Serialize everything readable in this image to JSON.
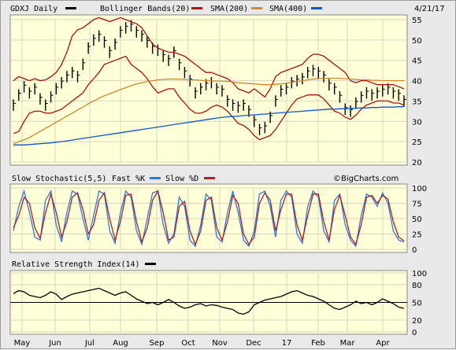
{
  "header": {
    "ticker_label": "GDXJ Daily",
    "bb_label": "Bollinger Bands(20)",
    "sma200_label": "SMA(200)",
    "sma400_label": "SMA(400)",
    "date": "4/21/17"
  },
  "stoch_header": {
    "title": "Slow Stochastic(5,5)",
    "fast_label": "Fast %K",
    "slow_label": "Slow %D",
    "brand": "©BigCharts.com"
  },
  "rsi_header": {
    "title": "Relative Strength Index(14)"
  },
  "colors": {
    "panel_bg": "#ffffd8",
    "frame_bg": "#e9e9e9",
    "price": "#000000",
    "bollinger": "#aa1111",
    "sma200": "#cc8833",
    "sma400": "#1155cc",
    "fast_k": "#3377dd",
    "slow_d": "#aa2222",
    "rsi": "#000000"
  },
  "chart_data": [
    {
      "type": "line",
      "panel": "price",
      "x_labels": [
        "May",
        "Jun",
        "Jul",
        "Aug",
        "Sep",
        "Oct",
        "Nov",
        "Dec",
        "17",
        "Feb",
        "Mar",
        "Apr"
      ],
      "y_ticks": [
        20,
        25,
        30,
        35,
        40,
        45,
        50,
        55
      ],
      "ylim": [
        20,
        55
      ],
      "series": [
        {
          "name": "GDXJ Daily",
          "style": "ohlc-bars",
          "values": [
            34,
            36.5,
            38.5,
            37,
            38,
            35.5,
            34,
            36,
            38,
            39.5,
            41,
            42,
            41,
            44,
            48,
            50,
            51,
            49.5,
            47,
            49,
            52,
            53,
            53.5,
            52,
            51,
            49.5,
            48,
            47.5,
            46,
            45,
            47,
            44,
            42,
            40,
            37,
            38,
            39,
            39.5,
            38,
            37.5,
            35,
            34,
            33.5,
            34,
            32.5,
            30,
            28,
            28.5,
            31,
            35,
            37.5,
            38,
            39.5,
            40,
            40.5,
            42,
            42.5,
            42,
            41,
            39,
            38,
            36,
            33,
            32.5,
            34.5,
            36,
            37,
            36.5,
            37,
            37.5,
            38,
            37,
            36.5,
            35
          ]
        },
        {
          "name": "Bollinger Bands(20) upper",
          "values": [
            40,
            41,
            40.5,
            40,
            40.5,
            40,
            40.2,
            41,
            42,
            44,
            47,
            51,
            52.5,
            53,
            54,
            55,
            55.5,
            55,
            54.5,
            55,
            55.5,
            55,
            54.5,
            54,
            53,
            51,
            49,
            48,
            47.5,
            47,
            47,
            46.5,
            46,
            45,
            44,
            43,
            42,
            42,
            41.5,
            41,
            40.5,
            39.5,
            38,
            37.5,
            37,
            38,
            37,
            36,
            38,
            41,
            42,
            42.5,
            43,
            43.5,
            44,
            45.5,
            46.5,
            46.5,
            46,
            45,
            44,
            43,
            42,
            40,
            39.5,
            40,
            40,
            39.5,
            39,
            39,
            39,
            39,
            38.5,
            38
          ]
        },
        {
          "name": "Bollinger Bands(20) lower",
          "values": [
            27,
            27.5,
            30,
            32,
            32.5,
            32.5,
            32,
            32,
            32.5,
            33,
            34,
            35,
            36,
            37,
            39,
            40.5,
            42,
            44,
            44.5,
            45,
            45.5,
            46,
            44,
            43,
            42,
            40.5,
            38.5,
            37,
            37.5,
            38,
            38,
            36,
            34.5,
            33,
            32,
            32,
            32.5,
            33.5,
            34,
            33.5,
            32.5,
            31,
            29.5,
            29,
            28,
            26.5,
            25.5,
            26,
            26.5,
            28,
            30,
            32,
            34,
            35.5,
            36,
            36.5,
            36.5,
            36.5,
            35.5,
            34,
            32.5,
            32,
            31,
            30.5,
            31.5,
            33,
            34,
            34.5,
            35,
            35,
            35,
            34.5,
            34.5,
            34
          ]
        },
        {
          "name": "SMA(200)",
          "values": [
            24.5,
            25,
            25.5,
            26,
            26.8,
            27.5,
            28.3,
            29,
            29.8,
            30.5,
            31.3,
            32,
            32.8,
            33.5,
            34.3,
            35,
            35.7,
            36.3,
            36.8,
            37.3,
            37.8,
            38.3,
            38.8,
            39.2,
            39.5,
            39.8,
            40,
            40.2,
            40.3,
            40.4,
            40.4,
            40.4,
            40.3,
            40.2,
            40.2,
            40.1,
            40,
            40,
            39.9,
            39.9,
            39.8,
            39.7,
            39.5,
            39.4,
            39.3,
            39.2,
            39.1,
            39,
            39,
            39.1,
            39.2,
            39.4,
            39.6,
            39.8,
            40,
            40.2,
            40.4,
            40.5,
            40.6,
            40.6,
            40.6,
            40.6,
            40.5,
            40.4,
            40.3,
            40.2,
            40.2,
            40.1,
            40.1,
            40,
            40,
            40,
            40,
            40
          ]
        },
        {
          "name": "SMA(400)",
          "values": [
            24.2,
            24.2,
            24.2,
            24.3,
            24.4,
            24.5,
            24.6,
            24.7,
            24.9,
            25.0,
            25.2,
            25.4,
            25.6,
            25.8,
            26.0,
            26.2,
            26.4,
            26.6,
            26.8,
            27.0,
            27.2,
            27.4,
            27.6,
            27.8,
            28.0,
            28.2,
            28.4,
            28.6,
            28.8,
            29.0,
            29.2,
            29.4,
            29.6,
            29.8,
            30.0,
            30.2,
            30.4,
            30.6,
            30.8,
            31.0,
            31.1,
            31.2,
            31.3,
            31.4,
            31.5,
            31.6,
            31.7,
            31.8,
            31.9,
            32.0,
            32.1,
            32.2,
            32.3,
            32.4,
            32.5,
            32.6,
            32.7,
            32.8,
            32.9,
            33.0,
            33.0,
            33.1,
            33.1,
            33.2,
            33.2,
            33.3,
            33.3,
            33.4,
            33.4,
            33.5,
            33.5,
            33.5,
            33.6,
            33.6
          ]
        }
      ]
    },
    {
      "type": "line",
      "panel": "stochastic",
      "y_ticks": [
        0,
        25,
        50,
        75,
        100
      ],
      "ylim": [
        0,
        100
      ],
      "series": [
        {
          "name": "Fast %K",
          "values": [
            30,
            70,
            95,
            60,
            20,
            15,
            80,
            95,
            40,
            12,
            60,
            95,
            90,
            50,
            15,
            55,
            95,
            90,
            30,
            10,
            60,
            95,
            85,
            30,
            8,
            50,
            92,
            95,
            40,
            10,
            25,
            85,
            70,
            15,
            5,
            40,
            90,
            80,
            20,
            12,
            60,
            95,
            60,
            15,
            5,
            30,
            90,
            95,
            70,
            20,
            80,
            95,
            85,
            25,
            10,
            70,
            95,
            85,
            30,
            12,
            80,
            90,
            40,
            15,
            5,
            55,
            90,
            85,
            70,
            92,
            75,
            30,
            15,
            12
          ]
        },
        {
          "name": "Slow %D",
          "values": [
            35,
            55,
            85,
            75,
            35,
            18,
            60,
            90,
            60,
            20,
            45,
            85,
            92,
            65,
            25,
            40,
            80,
            92,
            50,
            15,
            45,
            88,
            90,
            45,
            12,
            35,
            80,
            95,
            60,
            15,
            20,
            70,
            78,
            30,
            8,
            30,
            80,
            85,
            35,
            15,
            45,
            88,
            75,
            25,
            8,
            20,
            75,
            92,
            80,
            30,
            65,
            90,
            90,
            40,
            15,
            55,
            90,
            90,
            45,
            15,
            65,
            88,
            55,
            20,
            8,
            40,
            85,
            88,
            75,
            88,
            82,
            45,
            20,
            14
          ]
        }
      ]
    },
    {
      "type": "line",
      "panel": "rsi",
      "y_ticks": [
        0,
        20,
        50,
        80,
        100
      ],
      "ylim": [
        0,
        100
      ],
      "reference_line": 50,
      "series": [
        {
          "name": "Relative Strength Index(14)",
          "values": [
            65,
            70,
            68,
            62,
            60,
            58,
            62,
            68,
            64,
            55,
            60,
            64,
            66,
            68,
            70,
            72,
            74,
            70,
            66,
            62,
            66,
            68,
            62,
            56,
            52,
            48,
            50,
            46,
            50,
            55,
            50,
            44,
            40,
            42,
            46,
            48,
            44,
            46,
            45,
            42,
            40,
            38,
            32,
            30,
            34,
            46,
            50,
            54,
            56,
            58,
            60,
            64,
            68,
            70,
            66,
            62,
            60,
            56,
            52,
            46,
            40,
            38,
            42,
            46,
            52,
            48,
            50,
            46,
            50,
            56,
            52,
            48,
            42,
            40
          ]
        }
      ]
    }
  ]
}
